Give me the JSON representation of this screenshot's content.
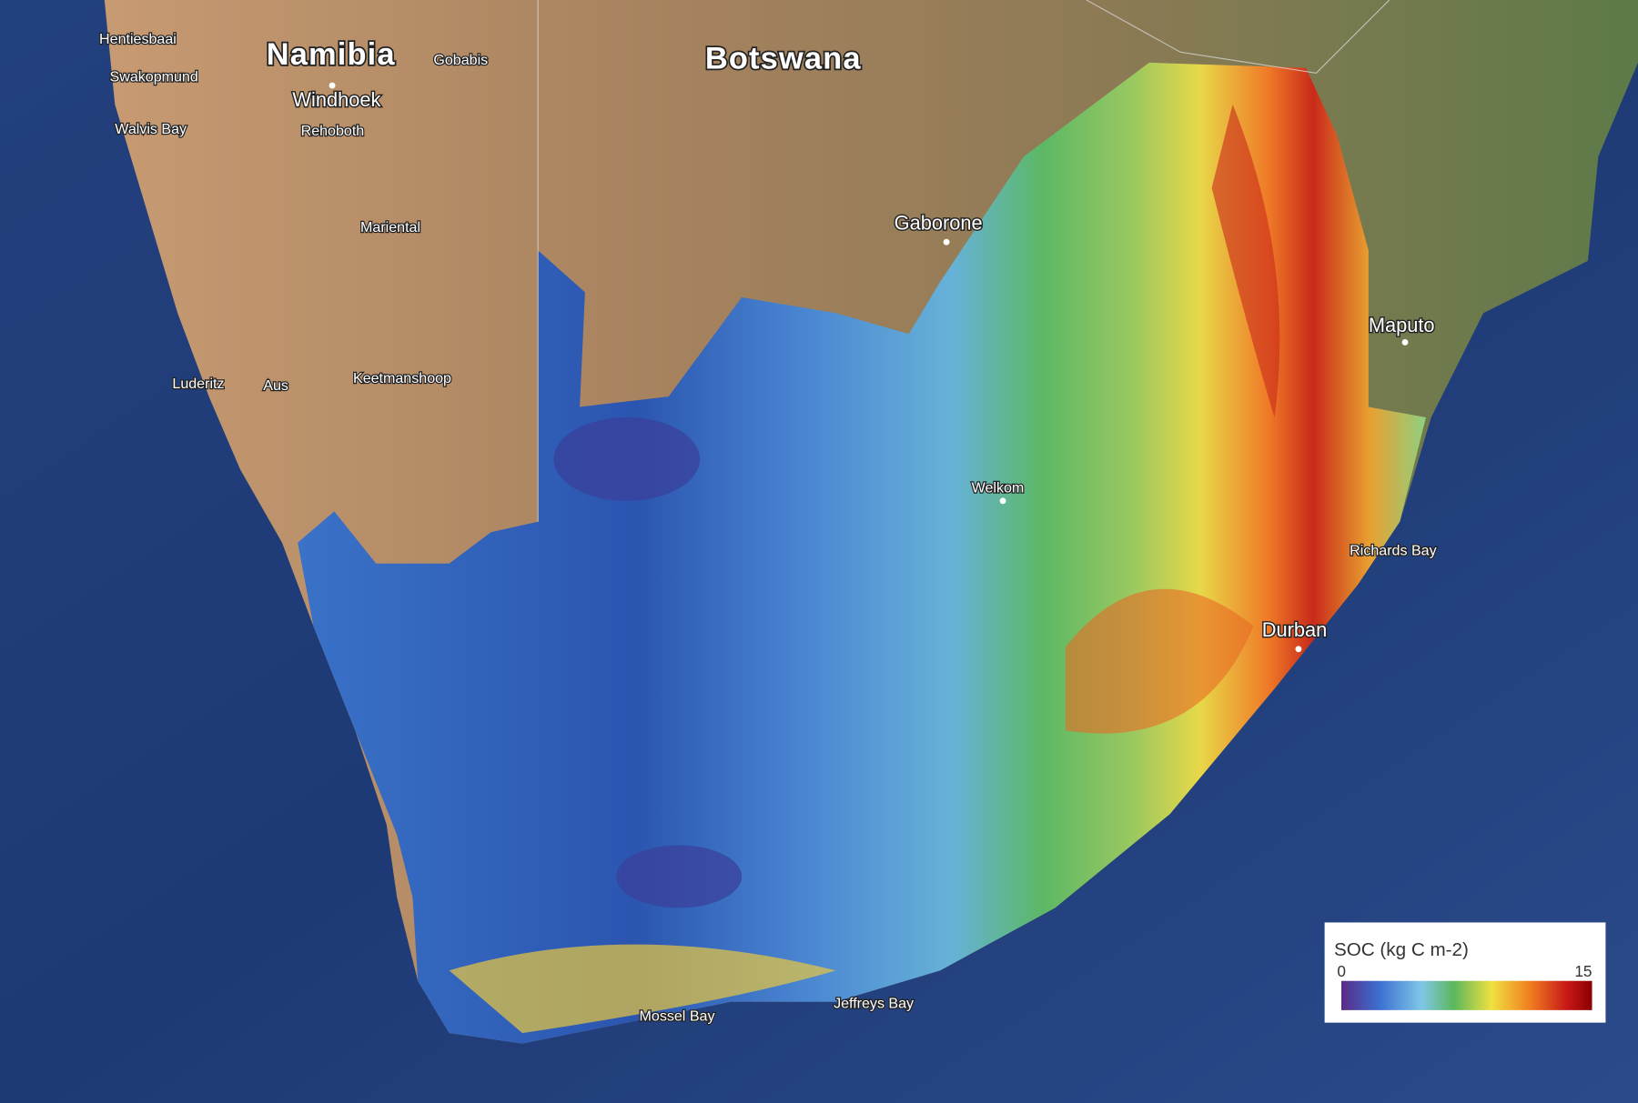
{
  "countries": [
    "Namibia",
    "Botswana"
  ],
  "places": [
    "Hentiesbaai",
    "Swakopmund",
    "Walvis Bay",
    "Gobabis",
    "Windhoek",
    "Rehoboth",
    "Mariental",
    "Luderitz",
    "Aus",
    "Keetmanshoop",
    "Gaborone",
    "Maputo",
    "Welkom",
    "Durban",
    "Richards Bay",
    "Jeffreys Bay",
    "Mossel Bay"
  ],
  "legend": {
    "title": "SOC (kg C m-2)",
    "min": 0,
    "max": 15
  }
}
